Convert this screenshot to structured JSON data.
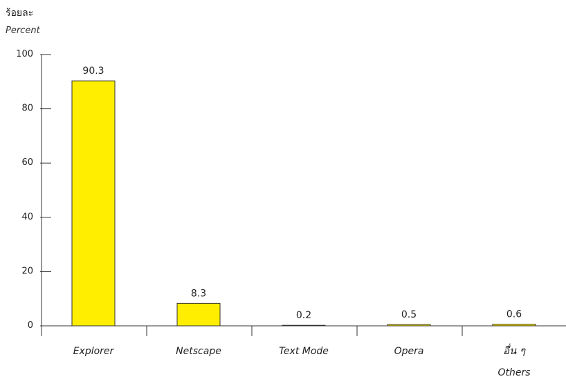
{
  "chart_data": {
    "type": "bar",
    "ylabel": "ร้อยละ",
    "ylabel_secondary": "Percent",
    "ylim": [
      0,
      100
    ],
    "yticks": [
      0,
      20,
      40,
      60,
      80,
      100
    ],
    "grid": false,
    "categories": [
      "Explorer",
      "Netscape",
      "Text Mode",
      "Opera",
      "อื่น ๆ"
    ],
    "category_sublabels": [
      "",
      "",
      "",
      "",
      "Others"
    ],
    "values": [
      90.3,
      8.3,
      0.2,
      0.5,
      0.6
    ],
    "value_labels": [
      "90.3",
      "8.3",
      "0.2",
      "0.5",
      "0.6"
    ],
    "bar_color": "#ffee00",
    "bar_edge_color": "#333333"
  }
}
